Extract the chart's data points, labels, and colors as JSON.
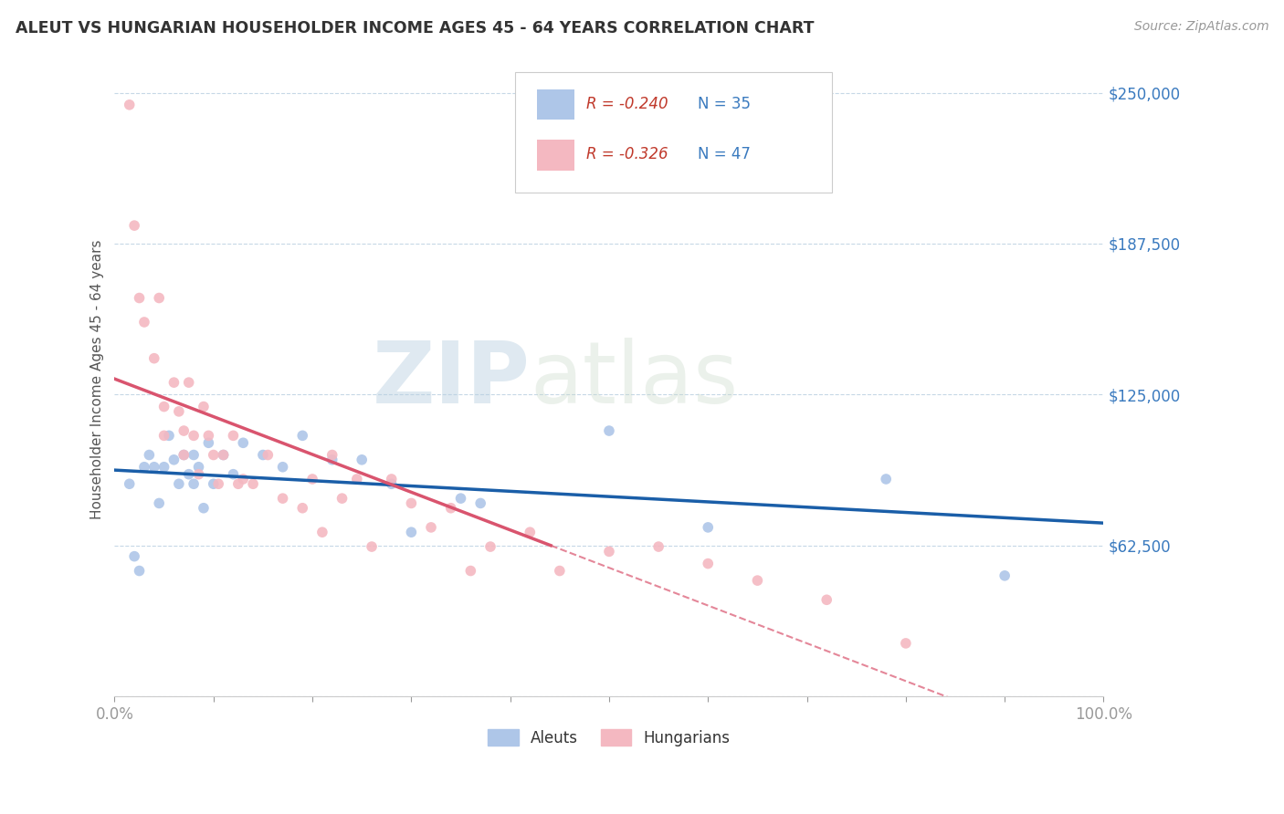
{
  "title": "ALEUT VS HUNGARIAN HOUSEHOLDER INCOME AGES 45 - 64 YEARS CORRELATION CHART",
  "source": "Source: ZipAtlas.com",
  "ylabel": "Householder Income Ages 45 - 64 years",
  "xlim": [
    0,
    1.0
  ],
  "ylim": [
    0,
    262500
  ],
  "yticks": [
    0,
    62500,
    125000,
    187500,
    250000
  ],
  "ytick_labels": [
    "",
    "$62,500",
    "$125,000",
    "$187,500",
    "$250,000"
  ],
  "aleuts_color": "#aec6e8",
  "hungarians_color": "#f4b8c1",
  "aleuts_line_color": "#1a5ea8",
  "hungarians_line_color": "#d9546e",
  "watermark_color": "#c8d8ea",
  "aleuts_x": [
    0.015,
    0.02,
    0.025,
    0.03,
    0.035,
    0.04,
    0.045,
    0.05,
    0.055,
    0.06,
    0.065,
    0.07,
    0.075,
    0.08,
    0.08,
    0.085,
    0.09,
    0.095,
    0.1,
    0.11,
    0.12,
    0.13,
    0.15,
    0.17,
    0.19,
    0.22,
    0.25,
    0.28,
    0.3,
    0.35,
    0.37,
    0.5,
    0.6,
    0.78,
    0.9
  ],
  "aleuts_y": [
    88000,
    58000,
    52000,
    95000,
    100000,
    95000,
    80000,
    95000,
    108000,
    98000,
    88000,
    100000,
    92000,
    100000,
    88000,
    95000,
    78000,
    105000,
    88000,
    100000,
    92000,
    105000,
    100000,
    95000,
    108000,
    98000,
    98000,
    88000,
    68000,
    82000,
    80000,
    110000,
    70000,
    90000,
    50000
  ],
  "hungarians_x": [
    0.015,
    0.02,
    0.025,
    0.03,
    0.04,
    0.045,
    0.05,
    0.05,
    0.06,
    0.065,
    0.07,
    0.07,
    0.075,
    0.08,
    0.085,
    0.09,
    0.095,
    0.1,
    0.105,
    0.11,
    0.12,
    0.125,
    0.13,
    0.14,
    0.155,
    0.17,
    0.19,
    0.2,
    0.21,
    0.22,
    0.23,
    0.245,
    0.26,
    0.28,
    0.3,
    0.32,
    0.34,
    0.36,
    0.38,
    0.42,
    0.45,
    0.5,
    0.55,
    0.6,
    0.65,
    0.72,
    0.8
  ],
  "hungarians_y": [
    245000,
    195000,
    165000,
    155000,
    140000,
    165000,
    120000,
    108000,
    130000,
    118000,
    110000,
    100000,
    130000,
    108000,
    92000,
    120000,
    108000,
    100000,
    88000,
    100000,
    108000,
    88000,
    90000,
    88000,
    100000,
    82000,
    78000,
    90000,
    68000,
    100000,
    82000,
    90000,
    62000,
    90000,
    80000,
    70000,
    78000,
    52000,
    62000,
    68000,
    52000,
    60000,
    62000,
    55000,
    48000,
    40000,
    22000
  ]
}
